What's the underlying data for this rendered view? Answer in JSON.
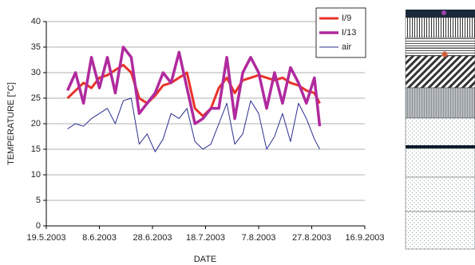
{
  "chart_data": {
    "type": "line",
    "xlabel": "DATE",
    "ylabel": "TEMPERATURE [°C]",
    "x": [
      "27.5.2003",
      "30.5.2003",
      "2.6.2003",
      "5.6.2003",
      "8.6.2003",
      "11.6.2003",
      "14.6.2003",
      "17.6.2003",
      "20.6.2003",
      "23.6.2003",
      "26.6.2003",
      "29.6.2003",
      "2.7.2003",
      "5.7.2003",
      "8.7.2003",
      "11.7.2003",
      "14.7.2003",
      "17.7.2003",
      "20.7.2003",
      "23.7.2003",
      "26.7.2003",
      "29.7.2003",
      "1.8.2003",
      "4.8.2003",
      "7.8.2003",
      "10.8.2003",
      "13.8.2003",
      "16.8.2003",
      "19.8.2003",
      "22.8.2003",
      "25.8.2003",
      "28.8.2003",
      "30.8.2003"
    ],
    "series": [
      {
        "name": "I/9",
        "color": "#e8322a",
        "width": 3,
        "values": [
          25,
          26.5,
          28,
          27,
          29,
          29.5,
          30.5,
          31.5,
          30,
          25,
          24,
          25.5,
          27.5,
          28,
          29,
          30,
          23,
          21.5,
          23,
          27,
          29,
          26,
          28.5,
          29,
          29.5,
          29,
          28.5,
          29,
          28,
          27.5,
          26.5,
          26,
          24
        ]
      },
      {
        "name": "I/13",
        "color": "#b02a9e",
        "width": 3.5,
        "values": [
          26.5,
          30,
          24,
          33,
          27,
          33,
          26,
          35,
          33,
          22,
          24,
          26,
          30,
          28,
          34,
          27,
          20,
          21,
          23,
          23,
          33,
          21,
          30,
          33,
          30,
          23,
          30,
          24,
          31,
          28,
          24,
          29,
          19.5
        ]
      },
      {
        "name": "air",
        "color": "#2b2f8f",
        "width": 1,
        "values": [
          19,
          20,
          19.5,
          21,
          22,
          23,
          20,
          24.5,
          25,
          16,
          18,
          14.5,
          17,
          22,
          21,
          23,
          16.5,
          15,
          16,
          20,
          24,
          16,
          18,
          24.5,
          22,
          15,
          17.5,
          22,
          16.5,
          24,
          21,
          17,
          15
        ]
      }
    ],
    "xlim": [
      "19.5.2003",
      "16.9.2003"
    ],
    "xticks": [
      "19.5.2003",
      "8.6.2003",
      "28.6.2003",
      "18.7.2003",
      "7.8.2003",
      "27.8.2003",
      "16.9.2003"
    ],
    "ylim": [
      0,
      40
    ],
    "yticks": [
      0,
      5,
      10,
      15,
      20,
      25,
      30,
      35,
      40
    ],
    "grid": true,
    "legend": "upper right"
  }
}
